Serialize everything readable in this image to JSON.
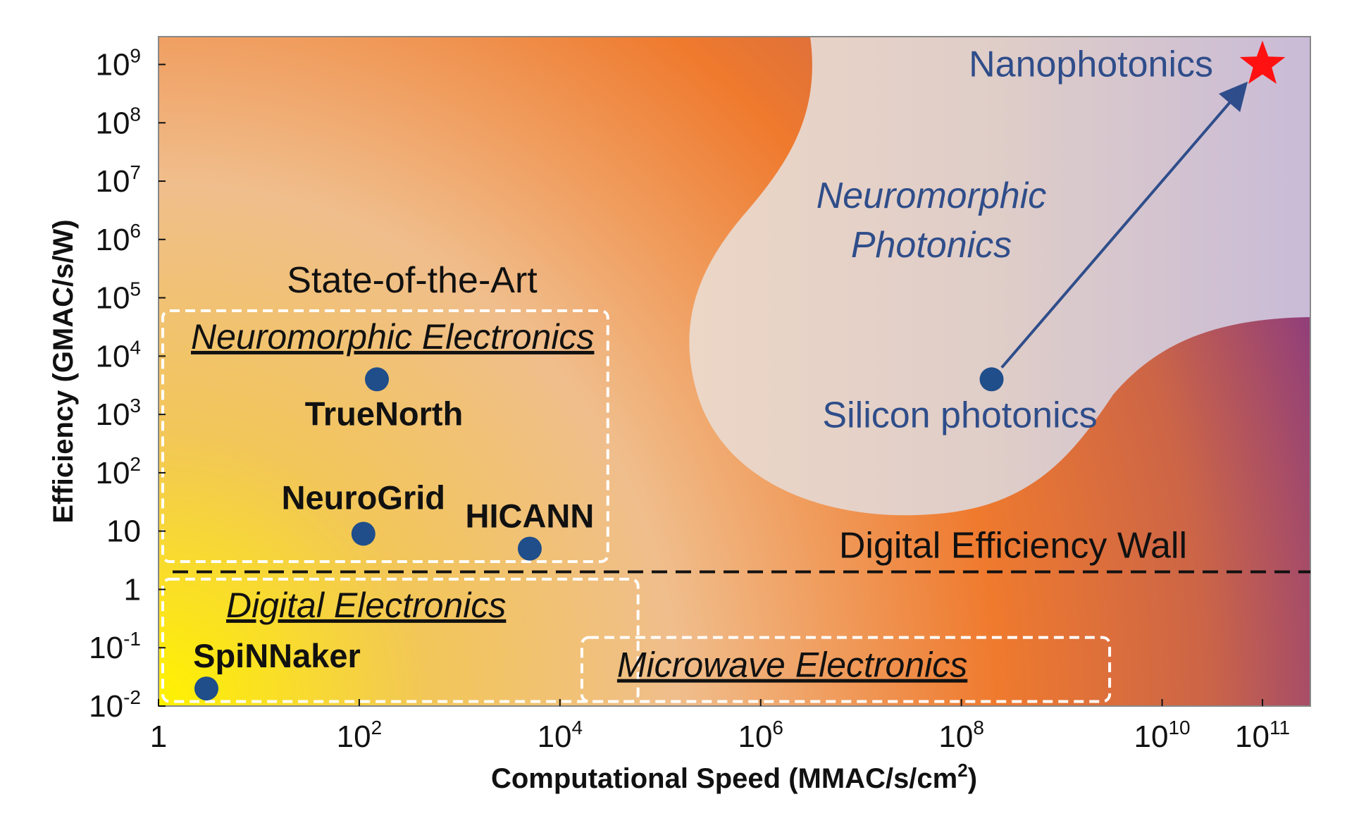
{
  "chart_data": {
    "type": "scatter",
    "title": "",
    "xlabel": "Computational Speed (MMAC/s/cm",
    "xlabel_sup": "2",
    "xlabel_end": ")",
    "ylabel": "Efficiency (GMAC/s/W)",
    "x_scale": "log",
    "y_scale": "log",
    "xlim": [
      1,
      300000000000
    ],
    "ylim": [
      0.01,
      3000000000
    ],
    "grid": false,
    "x_ticks": [
      {
        "value": 1,
        "base": "1",
        "exp": ""
      },
      {
        "value": 100,
        "base": "10",
        "exp": "2"
      },
      {
        "value": 10000,
        "base": "10",
        "exp": "4"
      },
      {
        "value": 1000000,
        "base": "10",
        "exp": "6"
      },
      {
        "value": 100000000,
        "base": "10",
        "exp": "8"
      },
      {
        "value": 10000000000,
        "base": "10",
        "exp": "10"
      },
      {
        "value": 100000000000,
        "base": "10",
        "exp": "11"
      }
    ],
    "y_ticks": [
      {
        "value": 0.01,
        "base": "10",
        "exp": "-2"
      },
      {
        "value": 0.1,
        "base": "10",
        "exp": "-1"
      },
      {
        "value": 1,
        "base": "1",
        "exp": ""
      },
      {
        "value": 10,
        "base": "10",
        "exp": ""
      },
      {
        "value": 100,
        "base": "10",
        "exp": "2"
      },
      {
        "value": 1000,
        "base": "10",
        "exp": "3"
      },
      {
        "value": 10000,
        "base": "10",
        "exp": "4"
      },
      {
        "value": 100000,
        "base": "10",
        "exp": "5"
      },
      {
        "value": 1000000,
        "base": "10",
        "exp": "6"
      },
      {
        "value": 10000000,
        "base": "10",
        "exp": "7"
      },
      {
        "value": 100000000,
        "base": "10",
        "exp": "8"
      },
      {
        "value": 1000000000,
        "base": "10",
        "exp": "9"
      }
    ],
    "points": [
      {
        "label": "TrueNorth",
        "x": 150,
        "y": 4000,
        "label_pos": "below",
        "color": "#1f4e8a"
      },
      {
        "label": "NeuroGrid",
        "x": 110,
        "y": 9,
        "label_pos": "above",
        "color": "#1f4e8a"
      },
      {
        "label": "HICANN",
        "x": 5000,
        "y": 5,
        "label_pos": "above-right",
        "color": "#1f4e8a"
      },
      {
        "label": "SpiNNaker",
        "x": 3,
        "y": 0.02,
        "label_pos": "above-right",
        "color": "#1f4e8a"
      },
      {
        "label": "Silicon photonics",
        "x": 200000000,
        "y": 4000,
        "label_pos": "below",
        "color": "#1f4e8a"
      }
    ],
    "target": {
      "label": "Nanophotonics",
      "x": 100000000000,
      "y": 1000000000,
      "color": "#ff1111"
    },
    "wall": {
      "label": "Digital Efficiency Wall",
      "y": 2
    },
    "regions": [
      {
        "label": "Neuromorphic Electronics",
        "x0": 1,
        "x1": 30000,
        "y0": 3,
        "y1": 60000
      },
      {
        "label": "Digital Electronics",
        "x0": 1,
        "x1": 60000,
        "y0": 0.012,
        "y1": 1.5
      },
      {
        "label": "Microwave Electronics",
        "x0": 15000,
        "x1": 3000000000,
        "y0": 0.012,
        "y1": 0.15
      }
    ],
    "annotations": {
      "sota": "State-of-the-Art",
      "neuromorphic_photonics_line1": "Neuromorphic",
      "neuromorphic_photonics_line2": "Photonics"
    }
  }
}
